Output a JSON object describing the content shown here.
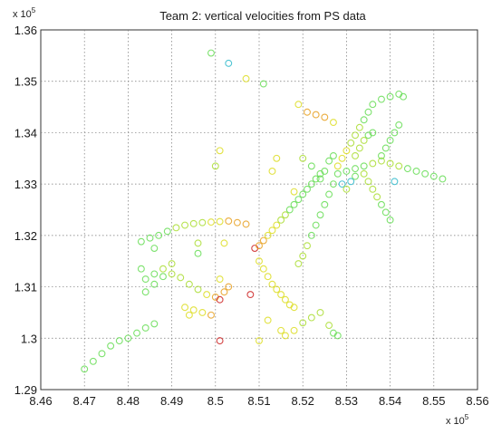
{
  "chart_data": {
    "type": "scatter",
    "title": "Team 2: vertical velocities from PS data",
    "xlabel": "",
    "ylabel": "",
    "x_exponent": {
      "base": "x 10",
      "power": "5"
    },
    "y_exponent": {
      "base": "x 10",
      "power": "5"
    },
    "xlim": [
      8.46,
      8.56
    ],
    "ylim": [
      1.29,
      1.36
    ],
    "x_ticks": [
      "8.46",
      "8.47",
      "8.48",
      "8.49",
      "8.5",
      "8.51",
      "8.52",
      "8.53",
      "8.54",
      "8.55",
      "8.56"
    ],
    "y_ticks": [
      "1.29",
      "1.3",
      "1.31",
      "1.32",
      "1.33",
      "1.34",
      "1.35",
      "1.36"
    ],
    "grid": true,
    "marker": "open-circle",
    "colors": {
      "green": "#66dd55",
      "yellowgreen": "#aadd33",
      "yellow": "#dddd22",
      "orange": "#e8a020",
      "red": "#cc2222",
      "cyan": "#33bbcc"
    },
    "points": [
      {
        "x": 8.47,
        "y": 1.294,
        "c": "green"
      },
      {
        "x": 8.472,
        "y": 1.2955,
        "c": "green"
      },
      {
        "x": 8.474,
        "y": 1.297,
        "c": "green"
      },
      {
        "x": 8.476,
        "y": 1.2985,
        "c": "green"
      },
      {
        "x": 8.478,
        "y": 1.2995,
        "c": "green"
      },
      {
        "x": 8.48,
        "y": 1.3,
        "c": "green"
      },
      {
        "x": 8.482,
        "y": 1.301,
        "c": "green"
      },
      {
        "x": 8.484,
        "y": 1.302,
        "c": "green"
      },
      {
        "x": 8.486,
        "y": 1.3028,
        "c": "green"
      },
      {
        "x": 8.484,
        "y": 1.3115,
        "c": "green"
      },
      {
        "x": 8.486,
        "y": 1.3125,
        "c": "green"
      },
      {
        "x": 8.488,
        "y": 1.3135,
        "c": "yellowgreen"
      },
      {
        "x": 8.49,
        "y": 1.3145,
        "c": "yellowgreen"
      },
      {
        "x": 8.483,
        "y": 1.3188,
        "c": "green"
      },
      {
        "x": 8.485,
        "y": 1.3195,
        "c": "green"
      },
      {
        "x": 8.487,
        "y": 1.32,
        "c": "green"
      },
      {
        "x": 8.489,
        "y": 1.3208,
        "c": "green"
      },
      {
        "x": 8.491,
        "y": 1.3215,
        "c": "yellowgreen"
      },
      {
        "x": 8.493,
        "y": 1.322,
        "c": "yellowgreen"
      },
      {
        "x": 8.495,
        "y": 1.3223,
        "c": "yellowgreen"
      },
      {
        "x": 8.497,
        "y": 1.3225,
        "c": "yellowgreen"
      },
      {
        "x": 8.499,
        "y": 1.3226,
        "c": "yellow"
      },
      {
        "x": 8.501,
        "y": 1.3227,
        "c": "yellow"
      },
      {
        "x": 8.503,
        "y": 1.3228,
        "c": "orange"
      },
      {
        "x": 8.505,
        "y": 1.3225,
        "c": "orange"
      },
      {
        "x": 8.507,
        "y": 1.3222,
        "c": "orange"
      },
      {
        "x": 8.484,
        "y": 1.309,
        "c": "green"
      },
      {
        "x": 8.486,
        "y": 1.3105,
        "c": "green"
      },
      {
        "x": 8.488,
        "y": 1.312,
        "c": "green"
      },
      {
        "x": 8.49,
        "y": 1.3125,
        "c": "yellowgreen"
      },
      {
        "x": 8.492,
        "y": 1.3118,
        "c": "yellowgreen"
      },
      {
        "x": 8.494,
        "y": 1.3105,
        "c": "yellowgreen"
      },
      {
        "x": 8.496,
        "y": 1.3095,
        "c": "yellowgreen"
      },
      {
        "x": 8.498,
        "y": 1.3085,
        "c": "yellow"
      },
      {
        "x": 8.5,
        "y": 1.308,
        "c": "orange"
      },
      {
        "x": 8.501,
        "y": 1.3075,
        "c": "red"
      },
      {
        "x": 8.502,
        "y": 1.309,
        "c": "orange"
      },
      {
        "x": 8.503,
        "y": 1.31,
        "c": "orange"
      },
      {
        "x": 8.493,
        "y": 1.306,
        "c": "yellow"
      },
      {
        "x": 8.495,
        "y": 1.3055,
        "c": "yellow"
      },
      {
        "x": 8.497,
        "y": 1.305,
        "c": "yellow"
      },
      {
        "x": 8.499,
        "y": 1.3045,
        "c": "orange"
      },
      {
        "x": 8.494,
        "y": 1.3045,
        "c": "yellow"
      },
      {
        "x": 8.501,
        "y": 1.2995,
        "c": "red"
      },
      {
        "x": 8.496,
        "y": 1.3185,
        "c": "yellowgreen"
      },
      {
        "x": 8.502,
        "y": 1.3185,
        "c": "yellow"
      },
      {
        "x": 8.501,
        "y": 1.3115,
        "c": "yellow"
      },
      {
        "x": 8.509,
        "y": 1.3175,
        "c": "red"
      },
      {
        "x": 8.51,
        "y": 1.318,
        "c": "orange"
      },
      {
        "x": 8.511,
        "y": 1.319,
        "c": "orange"
      },
      {
        "x": 8.512,
        "y": 1.32,
        "c": "yellow"
      },
      {
        "x": 8.513,
        "y": 1.321,
        "c": "yellow"
      },
      {
        "x": 8.514,
        "y": 1.322,
        "c": "yellow"
      },
      {
        "x": 8.515,
        "y": 1.323,
        "c": "yellowgreen"
      },
      {
        "x": 8.516,
        "y": 1.324,
        "c": "yellowgreen"
      },
      {
        "x": 8.517,
        "y": 1.325,
        "c": "green"
      },
      {
        "x": 8.518,
        "y": 1.326,
        "c": "green"
      },
      {
        "x": 8.519,
        "y": 1.327,
        "c": "green"
      },
      {
        "x": 8.52,
        "y": 1.328,
        "c": "green"
      },
      {
        "x": 8.521,
        "y": 1.329,
        "c": "green"
      },
      {
        "x": 8.522,
        "y": 1.33,
        "c": "green"
      },
      {
        "x": 8.523,
        "y": 1.331,
        "c": "green"
      },
      {
        "x": 8.524,
        "y": 1.332,
        "c": "green"
      },
      {
        "x": 8.525,
        "y": 1.3325,
        "c": "green"
      },
      {
        "x": 8.51,
        "y": 1.315,
        "c": "yellow"
      },
      {
        "x": 8.511,
        "y": 1.3135,
        "c": "yellow"
      },
      {
        "x": 8.512,
        "y": 1.312,
        "c": "yellow"
      },
      {
        "x": 8.513,
        "y": 1.3105,
        "c": "yellow"
      },
      {
        "x": 8.514,
        "y": 1.3095,
        "c": "yellow"
      },
      {
        "x": 8.515,
        "y": 1.3085,
        "c": "yellow"
      },
      {
        "x": 8.516,
        "y": 1.3075,
        "c": "yellow"
      },
      {
        "x": 8.517,
        "y": 1.3065,
        "c": "yellow"
      },
      {
        "x": 8.518,
        "y": 1.306,
        "c": "yellow"
      },
      {
        "x": 8.516,
        "y": 1.3005,
        "c": "yellow"
      },
      {
        "x": 8.518,
        "y": 1.3015,
        "c": "yellow"
      },
      {
        "x": 8.52,
        "y": 1.303,
        "c": "yellowgreen"
      },
      {
        "x": 8.522,
        "y": 1.304,
        "c": "yellowgreen"
      },
      {
        "x": 8.524,
        "y": 1.305,
        "c": "yellowgreen"
      },
      {
        "x": 8.526,
        "y": 1.3025,
        "c": "yellowgreen"
      },
      {
        "x": 8.527,
        "y": 1.301,
        "c": "green"
      },
      {
        "x": 8.528,
        "y": 1.3005,
        "c": "green"
      },
      {
        "x": 8.51,
        "y": 1.2995,
        "c": "yellow"
      },
      {
        "x": 8.508,
        "y": 1.3085,
        "c": "red"
      },
      {
        "x": 8.515,
        "y": 1.3015,
        "c": "yellow"
      },
      {
        "x": 8.512,
        "y": 1.3035,
        "c": "yellow"
      },
      {
        "x": 8.519,
        "y": 1.3145,
        "c": "yellowgreen"
      },
      {
        "x": 8.52,
        "y": 1.316,
        "c": "yellowgreen"
      },
      {
        "x": 8.521,
        "y": 1.318,
        "c": "yellowgreen"
      },
      {
        "x": 8.522,
        "y": 1.32,
        "c": "green"
      },
      {
        "x": 8.523,
        "y": 1.322,
        "c": "green"
      },
      {
        "x": 8.524,
        "y": 1.324,
        "c": "green"
      },
      {
        "x": 8.525,
        "y": 1.326,
        "c": "green"
      },
      {
        "x": 8.526,
        "y": 1.328,
        "c": "green"
      },
      {
        "x": 8.527,
        "y": 1.33,
        "c": "green"
      },
      {
        "x": 8.528,
        "y": 1.332,
        "c": "green"
      },
      {
        "x": 8.53,
        "y": 1.3325,
        "c": "green"
      },
      {
        "x": 8.532,
        "y": 1.333,
        "c": "green"
      },
      {
        "x": 8.534,
        "y": 1.3335,
        "c": "green"
      },
      {
        "x": 8.536,
        "y": 1.334,
        "c": "yellowgreen"
      },
      {
        "x": 8.538,
        "y": 1.3345,
        "c": "yellowgreen"
      },
      {
        "x": 8.54,
        "y": 1.334,
        "c": "yellowgreen"
      },
      {
        "x": 8.542,
        "y": 1.3335,
        "c": "yellowgreen"
      },
      {
        "x": 8.544,
        "y": 1.333,
        "c": "green"
      },
      {
        "x": 8.546,
        "y": 1.3325,
        "c": "green"
      },
      {
        "x": 8.548,
        "y": 1.332,
        "c": "green"
      },
      {
        "x": 8.55,
        "y": 1.3315,
        "c": "green"
      },
      {
        "x": 8.552,
        "y": 1.331,
        "c": "green"
      },
      {
        "x": 8.528,
        "y": 1.3335,
        "c": "yellow"
      },
      {
        "x": 8.529,
        "y": 1.335,
        "c": "yellow"
      },
      {
        "x": 8.53,
        "y": 1.3365,
        "c": "yellow"
      },
      {
        "x": 8.531,
        "y": 1.338,
        "c": "yellowgreen"
      },
      {
        "x": 8.532,
        "y": 1.3395,
        "c": "yellowgreen"
      },
      {
        "x": 8.533,
        "y": 1.341,
        "c": "yellowgreen"
      },
      {
        "x": 8.534,
        "y": 1.3425,
        "c": "green"
      },
      {
        "x": 8.535,
        "y": 1.344,
        "c": "green"
      },
      {
        "x": 8.536,
        "y": 1.3455,
        "c": "green"
      },
      {
        "x": 8.538,
        "y": 1.3465,
        "c": "green"
      },
      {
        "x": 8.54,
        "y": 1.347,
        "c": "green"
      },
      {
        "x": 8.542,
        "y": 1.3475,
        "c": "green"
      },
      {
        "x": 8.543,
        "y": 1.347,
        "c": "green"
      },
      {
        "x": 8.532,
        "y": 1.3355,
        "c": "yellowgreen"
      },
      {
        "x": 8.533,
        "y": 1.337,
        "c": "yellowgreen"
      },
      {
        "x": 8.534,
        "y": 1.3385,
        "c": "yellowgreen"
      },
      {
        "x": 8.535,
        "y": 1.3395,
        "c": "green"
      },
      {
        "x": 8.536,
        "y": 1.34,
        "c": "green"
      },
      {
        "x": 8.534,
        "y": 1.332,
        "c": "yellowgreen"
      },
      {
        "x": 8.535,
        "y": 1.3305,
        "c": "yellowgreen"
      },
      {
        "x": 8.536,
        "y": 1.329,
        "c": "yellowgreen"
      },
      {
        "x": 8.537,
        "y": 1.3275,
        "c": "yellowgreen"
      },
      {
        "x": 8.538,
        "y": 1.326,
        "c": "green"
      },
      {
        "x": 8.539,
        "y": 1.3245,
        "c": "green"
      },
      {
        "x": 8.54,
        "y": 1.323,
        "c": "green"
      },
      {
        "x": 8.538,
        "y": 1.3355,
        "c": "green"
      },
      {
        "x": 8.539,
        "y": 1.337,
        "c": "green"
      },
      {
        "x": 8.54,
        "y": 1.3385,
        "c": "green"
      },
      {
        "x": 8.541,
        "y": 1.34,
        "c": "green"
      },
      {
        "x": 8.542,
        "y": 1.3415,
        "c": "green"
      },
      {
        "x": 8.526,
        "y": 1.3345,
        "c": "green"
      },
      {
        "x": 8.527,
        "y": 1.3355,
        "c": "green"
      },
      {
        "x": 8.524,
        "y": 1.331,
        "c": "green"
      },
      {
        "x": 8.522,
        "y": 1.3335,
        "c": "green"
      },
      {
        "x": 8.52,
        "y": 1.335,
        "c": "yellowgreen"
      },
      {
        "x": 8.529,
        "y": 1.33,
        "c": "cyan"
      },
      {
        "x": 8.531,
        "y": 1.3305,
        "c": "cyan"
      },
      {
        "x": 8.532,
        "y": 1.3315,
        "c": "green"
      },
      {
        "x": 8.53,
        "y": 1.329,
        "c": "yellowgreen"
      },
      {
        "x": 8.519,
        "y": 1.3455,
        "c": "yellow"
      },
      {
        "x": 8.521,
        "y": 1.344,
        "c": "orange"
      },
      {
        "x": 8.523,
        "y": 1.3435,
        "c": "orange"
      },
      {
        "x": 8.525,
        "y": 1.343,
        "c": "orange"
      },
      {
        "x": 8.527,
        "y": 1.342,
        "c": "yellow"
      },
      {
        "x": 8.541,
        "y": 1.3305,
        "c": "cyan"
      },
      {
        "x": 8.499,
        "y": 1.3555,
        "c": "green"
      },
      {
        "x": 8.503,
        "y": 1.3535,
        "c": "cyan"
      },
      {
        "x": 8.507,
        "y": 1.3505,
        "c": "yellow"
      },
      {
        "x": 8.511,
        "y": 1.3495,
        "c": "green"
      },
      {
        "x": 8.501,
        "y": 1.3365,
        "c": "yellow"
      },
      {
        "x": 8.5,
        "y": 1.3335,
        "c": "yellowgreen"
      },
      {
        "x": 8.513,
        "y": 1.3325,
        "c": "yellow"
      },
      {
        "x": 8.514,
        "y": 1.335,
        "c": "yellow"
      },
      {
        "x": 8.518,
        "y": 1.3285,
        "c": "yellow"
      },
      {
        "x": 8.496,
        "y": 1.3165,
        "c": "green"
      },
      {
        "x": 8.483,
        "y": 1.3135,
        "c": "green"
      },
      {
        "x": 8.486,
        "y": 1.3175,
        "c": "green"
      }
    ]
  }
}
